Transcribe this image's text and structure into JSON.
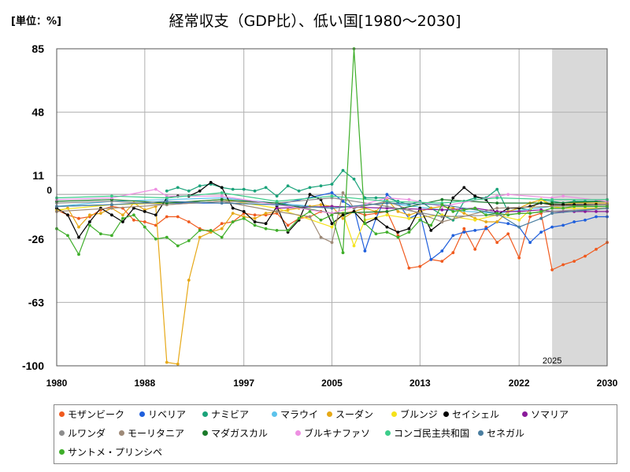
{
  "header": {
    "unit_label": "[単位：%]",
    "title": "経常収支（GDP比）、低い国[1980～2030]"
  },
  "chart_data": {
    "type": "line",
    "title": "経常収支（GDP比）、低い国[1980～2030]",
    "xlabel": "",
    "ylabel": "[単位：%]",
    "xlim": [
      1980,
      2030
    ],
    "ylim": [
      -100,
      85
    ],
    "y_ticks": [
      85,
      48,
      11,
      -26,
      -63,
      -100
    ],
    "x_ticks": [
      1980,
      1988,
      1997,
      2005,
      2013,
      2022,
      2030
    ],
    "zero_label": "0",
    "forecast_start": 2025,
    "forecast_label": "2025",
    "grid": true,
    "legend_position": "bottom",
    "series": [
      {
        "name": "モザンビーク",
        "color": "#f05a1e",
        "x": [
          1980,
          1981,
          1982,
          1983,
          1984,
          1985,
          1986,
          1987,
          1988,
          1989,
          1990,
          1991,
          1992,
          1993,
          1994,
          1995,
          1996,
          1997,
          1998,
          1999,
          2000,
          2001,
          2002,
          2003,
          2004,
          2005,
          2006,
          2007,
          2008,
          2009,
          2010,
          2011,
          2012,
          2013,
          2014,
          2015,
          2016,
          2017,
          2018,
          2019,
          2020,
          2021,
          2022,
          2023,
          2024,
          2025,
          2026,
          2027,
          2028,
          2029,
          2030
        ],
        "y": [
          -9,
          -12,
          -14,
          -13,
          -9,
          -7,
          -8,
          -15,
          -16,
          -18,
          -13,
          -13,
          -16,
          -20,
          -22,
          -17,
          -16,
          -11,
          -12,
          -12,
          -11,
          -18,
          -14,
          -13,
          -10,
          -11,
          -11,
          -10,
          -12,
          -11,
          -10,
          -24,
          -43,
          -42,
          -38,
          -39,
          -34,
          -20,
          -32,
          -19,
          -28,
          -23,
          -37,
          -13,
          -11,
          -44,
          -41,
          -39,
          -36,
          -32,
          -28
        ]
      },
      {
        "name": "リベリア",
        "color": "#1f5fdc",
        "x": [
          1980,
          1985,
          1990,
          1995,
          2000,
          2005,
          2006,
          2007,
          2008,
          2009,
          2010,
          2011,
          2012,
          2013,
          2014,
          2015,
          2016,
          2017,
          2018,
          2019,
          2020,
          2021,
          2022,
          2023,
          2024,
          2025,
          2026,
          2027,
          2028,
          2029,
          2030
        ],
        "y": [
          -7,
          -6,
          -5,
          -5,
          -6,
          1,
          -4,
          -8,
          -33,
          -14,
          0,
          -5,
          -14,
          -11,
          -38,
          -33,
          -24,
          -22,
          -21,
          -20,
          -16,
          -17,
          -19,
          -28,
          -22,
          -19,
          -18,
          -16,
          -15,
          -13,
          -13
        ]
      },
      {
        "name": "ナミビア",
        "color": "#1aa37a",
        "x": [
          1990,
          1991,
          1992,
          1993,
          1994,
          1995,
          1996,
          1997,
          1998,
          1999,
          2000,
          2001,
          2002,
          2003,
          2004,
          2005,
          2006,
          2007,
          2008,
          2009,
          2010,
          2011,
          2012,
          2013,
          2014,
          2015,
          2016,
          2017,
          2018,
          2019,
          2020,
          2021,
          2022,
          2023,
          2024,
          2025,
          2026,
          2027,
          2028,
          2029,
          2030
        ],
        "y": [
          2,
          4,
          2,
          5,
          6,
          4,
          3,
          3,
          2,
          4,
          -1,
          5,
          2,
          4,
          5,
          6,
          14,
          9,
          -2,
          -2,
          -2,
          -4,
          -6,
          -4,
          -8,
          -12,
          -15,
          -4,
          -2,
          -2,
          3,
          -10,
          -8,
          -9,
          -3,
          -4,
          -5,
          -4,
          -4,
          -4,
          -4
        ]
      },
      {
        "name": "マラウイ",
        "color": "#5cc3ec",
        "x": [
          1980,
          1985,
          1990,
          1995,
          2000,
          2005,
          2010,
          2015,
          2020,
          2025,
          2030
        ],
        "y": [
          -7,
          -4,
          -3,
          -2,
          -5,
          -8,
          -5,
          -9,
          -11,
          -7,
          -6
        ]
      },
      {
        "name": "スーダン",
        "color": "#e6a817",
        "x": [
          1980,
          1981,
          1982,
          1983,
          1984,
          1985,
          1986,
          1987,
          1988,
          1989,
          1990,
          1991,
          1992,
          1993,
          1994,
          1995,
          1996,
          1997,
          1998,
          1999,
          2000,
          2001,
          2002,
          2003,
          2004,
          2005,
          2006,
          2007,
          2008,
          2009,
          2010,
          2011,
          2012,
          2013,
          2014,
          2015,
          2016,
          2017,
          2018,
          2019,
          2020,
          2021,
          2022,
          2023,
          2024,
          2025,
          2026,
          2027,
          2028,
          2029,
          2030
        ],
        "y": [
          -10,
          -8,
          -19,
          -12,
          -11,
          -8,
          -12,
          -5,
          -9,
          -7,
          -98,
          -99,
          -50,
          -25,
          -22,
          -20,
          -11,
          -13,
          -14,
          -11,
          -10,
          -9,
          -8,
          -7,
          -6,
          -7,
          -14,
          -10,
          -8,
          -10,
          -3,
          -10,
          -12,
          -10,
          -8,
          -7,
          -8,
          -11,
          -14,
          -16,
          -16,
          -10,
          -8,
          -5,
          -3,
          -6,
          -6,
          -5,
          -5,
          -5,
          -5
        ]
      },
      {
        "name": "ブルンジ",
        "color": "#f5e21b",
        "x": [
          1980,
          1985,
          1990,
          1995,
          2000,
          2005,
          2006,
          2007,
          2008,
          2010,
          2012,
          2015,
          2018,
          2020,
          2022,
          2024,
          2025,
          2026,
          2027,
          2028,
          2030
        ],
        "y": [
          -9,
          -6,
          -5,
          -3,
          -8,
          -19,
          -11,
          -30,
          -15,
          -12,
          -14,
          -12,
          -15,
          -12,
          -15,
          -3,
          -7,
          -8,
          -8,
          -8,
          -8
        ]
      },
      {
        "name": "セイシェル",
        "color": "#000000",
        "x": [
          1980,
          1981,
          1982,
          1983,
          1984,
          1985,
          1986,
          1987,
          1988,
          1989,
          1990,
          1991,
          1992,
          1993,
          1994,
          1995,
          1996,
          1997,
          1998,
          1999,
          2000,
          2001,
          2002,
          2003,
          2004,
          2005,
          2006,
          2007,
          2008,
          2009,
          2010,
          2011,
          2012,
          2013,
          2014,
          2015,
          2016,
          2017,
          2018,
          2019,
          2020,
          2021,
          2022,
          2023,
          2024,
          2025,
          2026,
          2027,
          2028,
          2029,
          2030
        ],
        "y": [
          -8,
          -12,
          -25,
          -16,
          -8,
          -12,
          -16,
          -8,
          -10,
          -12,
          -2,
          -1,
          -1,
          2,
          7,
          4,
          -8,
          -10,
          -16,
          -17,
          -7,
          -22,
          -15,
          0,
          -3,
          -17,
          -12,
          -10,
          -17,
          -14,
          -19,
          -22,
          -20,
          -8,
          -21,
          -16,
          -2,
          4,
          -1,
          -3,
          -12,
          -8,
          -8,
          -7,
          -5,
          -6,
          -6,
          -6,
          -6,
          -6,
          -6
        ]
      },
      {
        "name": "ソマリア",
        "color": "#8a1a9b",
        "x": [
          2000,
          2005,
          2010,
          2015,
          2018,
          2020,
          2022,
          2024,
          2025,
          2026,
          2027,
          2028,
          2029,
          2030
        ],
        "y": [
          -8,
          -7,
          -8,
          -9,
          -8,
          -10,
          -10,
          -9,
          -10,
          -10,
          -10,
          -10,
          -10,
          -10
        ]
      },
      {
        "name": "ルワンダ",
        "color": "#8d8d8d",
        "x": [
          1980,
          1985,
          1990,
          1995,
          2000,
          2005,
          2010,
          2015,
          2020,
          2025,
          2030
        ],
        "y": [
          -5,
          -4,
          -6,
          -4,
          -5,
          -2,
          -7,
          -13,
          -12,
          -10,
          -8
        ]
      },
      {
        "name": "モーリタニア",
        "color": "#9e8a78",
        "x": [
          1980,
          1985,
          1990,
          1995,
          2000,
          2003,
          2004,
          2005,
          2006,
          2007,
          2010,
          2015,
          2020,
          2025,
          2030
        ],
        "y": [
          -10,
          -8,
          -6,
          -4,
          -10,
          -13,
          -25,
          -28,
          1,
          -8,
          -4,
          -16,
          -8,
          -7,
          -6
        ]
      },
      {
        "name": "マダガスカル",
        "color": "#1a7a2a",
        "x": [
          1980,
          1985,
          1990,
          1995,
          2000,
          2005,
          2010,
          2015,
          2020,
          2025,
          2030
        ],
        "y": [
          -4,
          -3,
          -5,
          -3,
          -5,
          -11,
          -10,
          -3,
          -5,
          -5,
          -4
        ]
      },
      {
        "name": "ブルキナファソ",
        "color": "#ee90e2",
        "x": [
          1980,
          1985,
          1989,
          1990,
          1995,
          2000,
          2005,
          2010,
          2012,
          2015,
          2020,
          2021,
          2025,
          2026,
          2030
        ],
        "y": [
          -3,
          -2,
          3,
          -1,
          -1,
          -6,
          -11,
          -2,
          -3,
          -7,
          -1,
          0,
          -2,
          -1,
          -4
        ]
      },
      {
        "name": "コンゴ民主共和国",
        "color": "#3ccd8a",
        "x": [
          1980,
          1985,
          1990,
          1995,
          2000,
          2005,
          2010,
          2015,
          2020,
          2025,
          2030
        ],
        "y": [
          -2,
          -1,
          -2,
          1,
          -4,
          -1,
          -4,
          -5,
          -2,
          -3,
          -3
        ]
      },
      {
        "name": "セネガル",
        "color": "#4a7ea0",
        "x": [
          1980,
          1985,
          1990,
          1995,
          2000,
          2005,
          2010,
          2015,
          2020,
          2022,
          2024,
          2025,
          2030
        ],
        "y": [
          -7,
          -6,
          -4,
          -5,
          -6,
          -8,
          -5,
          -6,
          -11,
          -19,
          -14,
          -11,
          -8
        ]
      },
      {
        "name": "サントメ・プリンシペ",
        "color": "#3fae2a",
        "x": [
          1980,
          1981,
          1982,
          1983,
          1984,
          1985,
          1986,
          1987,
          1988,
          1989,
          1990,
          1991,
          1992,
          1993,
          1994,
          1995,
          1996,
          1997,
          1998,
          1999,
          2000,
          2001,
          2002,
          2003,
          2004,
          2005,
          2006,
          2007,
          2008,
          2009,
          2010,
          2011,
          2012,
          2013,
          2014,
          2015,
          2016,
          2017,
          2018,
          2019,
          2020,
          2021,
          2022,
          2023,
          2024,
          2025,
          2026,
          2027,
          2028,
          2029,
          2030
        ],
        "y": [
          -20,
          -24,
          -35,
          -18,
          -23,
          -24,
          -14,
          -12,
          -19,
          -26,
          -25,
          -30,
          -27,
          -21,
          -21,
          -25,
          -16,
          -14,
          -18,
          -20,
          -21,
          -21,
          -14,
          -10,
          -15,
          -12,
          -34,
          85,
          -17,
          -23,
          -22,
          -25,
          -22,
          -15,
          -18,
          -6,
          -10,
          -9,
          -8,
          -12,
          -11,
          -12,
          -11,
          -11,
          -10,
          -8,
          -8,
          -7,
          -7,
          -7,
          -7
        ]
      }
    ]
  }
}
